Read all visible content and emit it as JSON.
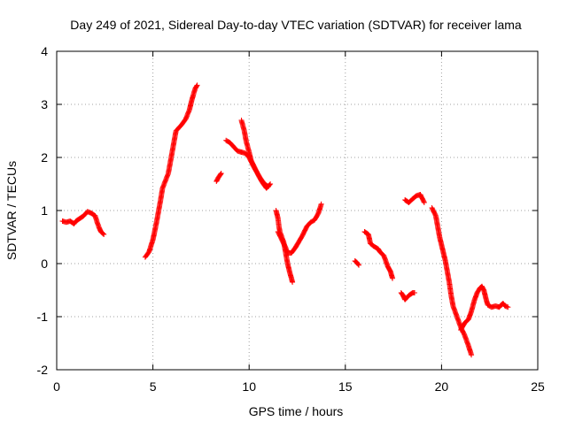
{
  "chart_data": {
    "type": "scatter",
    "title": "Day 249 of 2021, Sidereal Day-to-day VTEC variation (SDTVAR) for receiver lama",
    "xlabel": "GPS time / hours",
    "ylabel": "SDTVAR / TECUs",
    "xlim": [
      0,
      25
    ],
    "ylim": [
      -2,
      4
    ],
    "xticks": [
      0,
      5,
      10,
      15,
      20,
      25
    ],
    "yticks": [
      -2,
      -1,
      0,
      1,
      2,
      3,
      4
    ],
    "grid": true,
    "legend": "none",
    "marker": "plus",
    "colors": {
      "series": "#ff0000",
      "grid": "#a0a0a0",
      "axes": "#000000"
    },
    "segments": [
      [
        [
          0.3,
          0.8
        ],
        [
          0.5,
          0.78
        ],
        [
          0.7,
          0.8
        ],
        [
          0.9,
          0.75
        ],
        [
          1.0,
          0.8
        ],
        [
          1.2,
          0.85
        ],
        [
          1.4,
          0.9
        ],
        [
          1.6,
          0.98
        ],
        [
          1.8,
          0.95
        ],
        [
          2.0,
          0.9
        ],
        [
          2.1,
          0.78
        ],
        [
          2.2,
          0.68
        ],
        [
          2.3,
          0.6
        ],
        [
          2.45,
          0.55
        ]
      ],
      [
        [
          4.6,
          0.12
        ],
        [
          4.8,
          0.22
        ],
        [
          5.0,
          0.45
        ],
        [
          5.1,
          0.62
        ],
        [
          5.2,
          0.8
        ],
        [
          5.3,
          1.0
        ],
        [
          5.4,
          1.2
        ],
        [
          5.5,
          1.42
        ],
        [
          5.8,
          1.7
        ],
        [
          5.9,
          1.9
        ],
        [
          6.0,
          2.1
        ],
        [
          6.1,
          2.3
        ],
        [
          6.2,
          2.5
        ],
        [
          6.5,
          2.62
        ],
        [
          6.7,
          2.72
        ],
        [
          6.9,
          2.9
        ],
        [
          7.0,
          3.05
        ],
        [
          7.1,
          3.18
        ],
        [
          7.2,
          3.3
        ],
        [
          7.3,
          3.36
        ]
      ],
      [
        [
          8.3,
          1.55
        ],
        [
          8.4,
          1.62
        ],
        [
          8.55,
          1.7
        ]
      ],
      [
        [
          8.8,
          2.32
        ],
        [
          9.0,
          2.28
        ],
        [
          9.2,
          2.2
        ],
        [
          9.4,
          2.12
        ],
        [
          9.6,
          2.1
        ],
        [
          9.8,
          2.08
        ],
        [
          10.0,
          2.0
        ],
        [
          10.2,
          1.85
        ],
        [
          10.4,
          1.72
        ],
        [
          10.6,
          1.6
        ],
        [
          10.8,
          1.5
        ],
        [
          11.0,
          1.45
        ]
      ],
      [
        [
          9.6,
          2.7
        ],
        [
          9.75,
          2.5
        ],
        [
          9.85,
          2.3
        ],
        [
          10.0,
          2.1
        ],
        [
          10.1,
          1.95
        ],
        [
          10.3,
          1.8
        ],
        [
          10.5,
          1.65
        ],
        [
          10.7,
          1.52
        ],
        [
          10.9,
          1.42
        ],
        [
          11.1,
          1.5
        ]
      ],
      [
        [
          11.4,
          1.0
        ],
        [
          11.5,
          0.85
        ],
        [
          11.55,
          0.7
        ],
        [
          11.6,
          0.6
        ],
        [
          11.7,
          0.5
        ],
        [
          11.8,
          0.4
        ],
        [
          11.9,
          0.2
        ],
        [
          12.0,
          0.0
        ],
        [
          12.1,
          -0.15
        ],
        [
          12.2,
          -0.28
        ],
        [
          12.25,
          -0.35
        ]
      ],
      [
        [
          11.5,
          0.6
        ],
        [
          11.7,
          0.45
        ],
        [
          11.9,
          0.3
        ],
        [
          12.0,
          0.2
        ],
        [
          12.2,
          0.2
        ],
        [
          12.4,
          0.3
        ],
        [
          12.6,
          0.42
        ],
        [
          12.8,
          0.55
        ],
        [
          13.0,
          0.7
        ],
        [
          13.2,
          0.78
        ],
        [
          13.4,
          0.82
        ],
        [
          13.6,
          0.95
        ],
        [
          13.75,
          1.12
        ]
      ],
      [
        [
          15.5,
          0.05
        ],
        [
          15.6,
          0.02
        ],
        [
          15.7,
          -0.03
        ]
      ],
      [
        [
          16.0,
          0.6
        ],
        [
          16.2,
          0.55
        ],
        [
          16.3,
          0.38
        ],
        [
          16.5,
          0.32
        ],
        [
          16.7,
          0.28
        ],
        [
          16.8,
          0.22
        ],
        [
          17.0,
          0.15
        ],
        [
          17.1,
          0.05
        ],
        [
          17.2,
          -0.05
        ],
        [
          17.35,
          -0.15
        ],
        [
          17.45,
          -0.28
        ]
      ],
      [
        [
          17.9,
          -0.55
        ],
        [
          18.0,
          -0.6
        ],
        [
          18.1,
          -0.68
        ],
        [
          18.3,
          -0.6
        ],
        [
          18.5,
          -0.55
        ],
        [
          18.6,
          -0.55
        ]
      ],
      [
        [
          18.1,
          1.2
        ],
        [
          18.3,
          1.15
        ],
        [
          18.5,
          1.22
        ],
        [
          18.7,
          1.28
        ],
        [
          18.9,
          1.3
        ],
        [
          19.1,
          1.15
        ]
      ],
      [
        [
          19.5,
          1.05
        ],
        [
          19.7,
          0.9
        ],
        [
          19.8,
          0.7
        ],
        [
          19.9,
          0.5
        ],
        [
          20.0,
          0.35
        ],
        [
          20.1,
          0.2
        ],
        [
          20.2,
          0.05
        ],
        [
          20.3,
          -0.15
        ],
        [
          20.4,
          -0.35
        ],
        [
          20.5,
          -0.6
        ],
        [
          20.6,
          -0.8
        ],
        [
          20.8,
          -1.0
        ],
        [
          21.0,
          -1.2
        ],
        [
          21.2,
          -1.35
        ],
        [
          21.4,
          -1.55
        ],
        [
          21.55,
          -1.72
        ]
      ],
      [
        [
          21.0,
          -1.25
        ],
        [
          21.2,
          -1.12
        ],
        [
          21.4,
          -1.05
        ],
        [
          21.55,
          -0.9
        ],
        [
          21.7,
          -0.7
        ],
        [
          21.85,
          -0.55
        ],
        [
          22.0,
          -0.46
        ],
        [
          22.1,
          -0.43
        ],
        [
          22.2,
          -0.5
        ],
        [
          22.3,
          -0.65
        ],
        [
          22.4,
          -0.78
        ],
        [
          22.6,
          -0.82
        ],
        [
          22.8,
          -0.8
        ],
        [
          23.0,
          -0.82
        ],
        [
          23.1,
          -0.78
        ],
        [
          23.2,
          -0.75
        ],
        [
          23.3,
          -0.8
        ],
        [
          23.45,
          -0.82
        ]
      ]
    ]
  }
}
